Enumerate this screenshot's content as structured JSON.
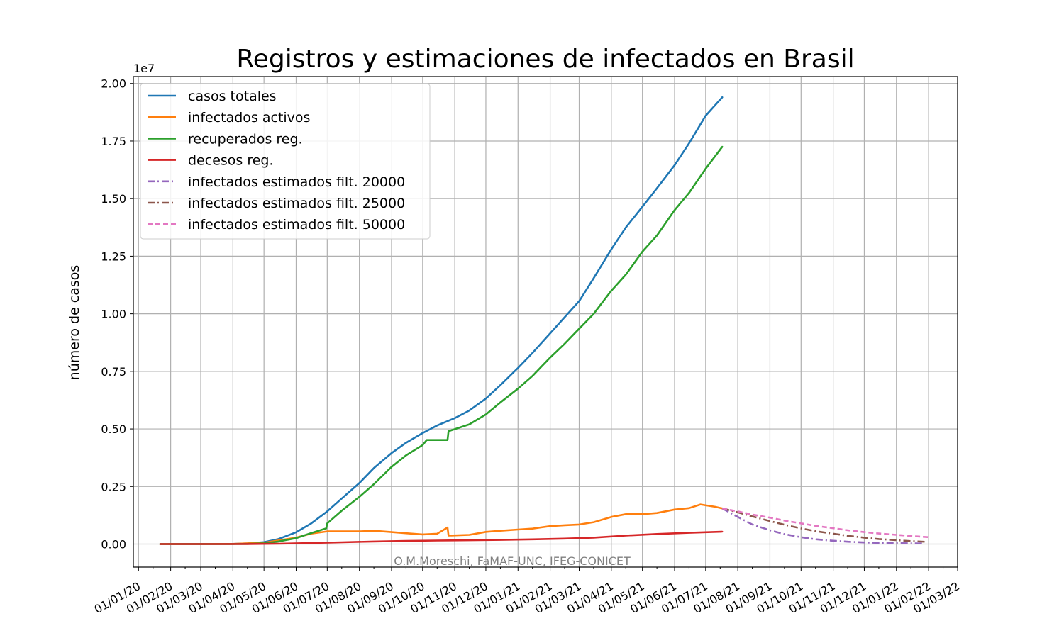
{
  "chart_data": {
    "type": "line",
    "title": "Registros y estimaciones de infectados en Brasil",
    "ylabel": "número de casos",
    "xlabel": "",
    "y_offset_label": "1e7",
    "y_scale": 10000000,
    "xlim": [
      "2019-12-27",
      "2022-03-01"
    ],
    "ylim": [
      -0.1,
      2.03
    ],
    "grid": true,
    "legend_position": "upper-left",
    "yticks": [
      0.0,
      0.25,
      0.5,
      0.75,
      1.0,
      1.25,
      1.5,
      1.75,
      2.0
    ],
    "ytick_labels": [
      "0.00",
      "0.25",
      "0.50",
      "0.75",
      "1.00",
      "1.25",
      "1.50",
      "1.75",
      "2.00"
    ],
    "xticks": [
      "2020-01-01",
      "2020-02-01",
      "2020-03-01",
      "2020-04-01",
      "2020-05-01",
      "2020-06-01",
      "2020-07-01",
      "2020-08-01",
      "2020-09-01",
      "2020-10-01",
      "2020-11-01",
      "2020-12-01",
      "2021-01-01",
      "2021-02-01",
      "2021-03-01",
      "2021-04-01",
      "2021-05-01",
      "2021-06-01",
      "2021-07-01",
      "2021-08-01",
      "2021-09-01",
      "2021-10-01",
      "2021-11-01",
      "2021-12-01",
      "2022-01-01",
      "2022-02-01",
      "2022-03-01"
    ],
    "xtick_labels": [
      "01/01/20",
      "01/02/20",
      "01/03/20",
      "01/04/20",
      "01/05/20",
      "01/06/20",
      "01/07/20",
      "01/08/20",
      "01/09/20",
      "01/10/20",
      "01/11/20",
      "01/12/20",
      "01/01/21",
      "01/02/21",
      "01/03/21",
      "01/04/21",
      "01/05/21",
      "01/06/21",
      "01/07/21",
      "01/08/21",
      "01/09/21",
      "01/10/21",
      "01/11/21",
      "01/12/21",
      "01/01/22",
      "01/02/22",
      "01/03/22"
    ],
    "series": [
      {
        "name": "casos totales",
        "color": "#1f77b4",
        "dash": "solid",
        "x": [
          "2020-01-22",
          "2020-03-01",
          "2020-04-01",
          "2020-04-15",
          "2020-05-01",
          "2020-05-15",
          "2020-06-01",
          "2020-06-15",
          "2020-07-01",
          "2020-07-15",
          "2020-08-01",
          "2020-08-15",
          "2020-09-01",
          "2020-09-15",
          "2020-10-01",
          "2020-10-15",
          "2020-11-01",
          "2020-11-15",
          "2020-12-01",
          "2020-12-15",
          "2021-01-01",
          "2021-01-15",
          "2021-02-01",
          "2021-02-15",
          "2021-03-01",
          "2021-03-15",
          "2021-04-01",
          "2021-04-15",
          "2021-05-01",
          "2021-05-15",
          "2021-06-01",
          "2021-06-15",
          "2021-07-01",
          "2021-07-17"
        ],
        "values": [
          0.0,
          0.0002,
          0.00065,
          0.0027,
          0.0085,
          0.0218,
          0.0515,
          0.088,
          0.142,
          0.198,
          0.265,
          0.33,
          0.395,
          0.44,
          0.482,
          0.515,
          0.547,
          0.58,
          0.632,
          0.69,
          0.765,
          0.83,
          0.915,
          0.985,
          1.055,
          1.155,
          1.28,
          1.375,
          1.465,
          1.545,
          1.645,
          1.74,
          1.86,
          1.94
        ]
      },
      {
        "name": "infectados activos",
        "color": "#ff7f0e",
        "dash": "solid",
        "x": [
          "2020-01-22",
          "2020-03-01",
          "2020-04-01",
          "2020-05-01",
          "2020-06-01",
          "2020-06-15",
          "2020-07-01",
          "2020-07-15",
          "2020-08-01",
          "2020-08-15",
          "2020-09-01",
          "2020-09-15",
          "2020-10-01",
          "2020-10-15",
          "2020-10-25",
          "2020-10-26",
          "2020-11-15",
          "2020-12-01",
          "2020-12-15",
          "2021-01-01",
          "2021-01-15",
          "2021-02-01",
          "2021-02-15",
          "2021-03-01",
          "2021-03-15",
          "2021-04-01",
          "2021-04-15",
          "2021-05-01",
          "2021-05-15",
          "2021-06-01",
          "2021-06-15",
          "2021-06-26",
          "2021-07-10",
          "2021-07-17"
        ],
        "values": [
          0.0,
          0.0001,
          0.0005,
          0.006,
          0.028,
          0.045,
          0.055,
          0.055,
          0.055,
          0.058,
          0.052,
          0.047,
          0.042,
          0.045,
          0.072,
          0.037,
          0.04,
          0.053,
          0.058,
          0.063,
          0.067,
          0.078,
          0.082,
          0.085,
          0.095,
          0.118,
          0.13,
          0.13,
          0.135,
          0.15,
          0.156,
          0.172,
          0.162,
          0.155
        ]
      },
      {
        "name": "recuperados reg.",
        "color": "#2ca02c",
        "dash": "solid",
        "x": [
          "2020-01-22",
          "2020-03-01",
          "2020-04-01",
          "2020-04-15",
          "2020-05-01",
          "2020-05-15",
          "2020-06-01",
          "2020-06-15",
          "2020-06-30",
          "2020-07-01",
          "2020-07-15",
          "2020-08-01",
          "2020-08-15",
          "2020-09-01",
          "2020-09-15",
          "2020-10-01",
          "2020-10-05",
          "2020-10-25",
          "2020-10-26",
          "2020-11-15",
          "2020-12-01",
          "2020-12-15",
          "2021-01-01",
          "2021-01-15",
          "2021-02-01",
          "2021-02-15",
          "2021-03-01",
          "2021-03-15",
          "2021-04-01",
          "2021-04-15",
          "2021-05-01",
          "2021-05-15",
          "2021-06-01",
          "2021-06-15",
          "2021-07-01",
          "2021-07-17"
        ],
        "values": [
          0.0,
          0.0,
          0.0001,
          0.0008,
          0.0035,
          0.011,
          0.026,
          0.047,
          0.068,
          0.09,
          0.145,
          0.205,
          0.26,
          0.335,
          0.385,
          0.43,
          0.452,
          0.452,
          0.49,
          0.52,
          0.563,
          0.615,
          0.675,
          0.73,
          0.81,
          0.87,
          0.935,
          1.0,
          1.1,
          1.17,
          1.27,
          1.34,
          1.45,
          1.525,
          1.63,
          1.725
        ]
      },
      {
        "name": "decesos reg.",
        "color": "#d62728",
        "dash": "solid",
        "x": [
          "2020-01-22",
          "2020-03-15",
          "2020-04-15",
          "2020-05-15",
          "2020-06-15",
          "2020-07-15",
          "2020-08-15",
          "2020-09-15",
          "2020-10-15",
          "2020-11-15",
          "2020-12-15",
          "2021-01-15",
          "2021-02-15",
          "2021-03-15",
          "2021-04-15",
          "2021-05-15",
          "2021-06-15",
          "2021-07-17"
        ],
        "values": [
          0.0,
          0.0,
          0.0002,
          0.0015,
          0.0044,
          0.0077,
          0.011,
          0.0135,
          0.0154,
          0.0168,
          0.0182,
          0.0207,
          0.0238,
          0.028,
          0.037,
          0.0436,
          0.049,
          0.054
        ]
      },
      {
        "name": "infectados estimados filt. 20000",
        "color": "#9467bd",
        "dash": "dashdot",
        "x": [
          "2021-07-17",
          "2021-08-01",
          "2021-08-15",
          "2021-09-01",
          "2021-09-15",
          "2021-10-01",
          "2021-10-15",
          "2021-11-01",
          "2021-11-15",
          "2021-12-01",
          "2021-12-15",
          "2022-01-01",
          "2022-01-15",
          "2022-01-27"
        ],
        "values": [
          0.155,
          0.118,
          0.085,
          0.06,
          0.043,
          0.03,
          0.021,
          0.0145,
          0.0101,
          0.0072,
          0.0053,
          0.004,
          0.0031,
          0.0025
        ]
      },
      {
        "name": "infectados estimados filt. 25000",
        "color": "#8c564b",
        "dash": "dashdot",
        "x": [
          "2021-07-17",
          "2021-08-01",
          "2021-08-15",
          "2021-09-01",
          "2021-09-15",
          "2021-10-01",
          "2021-10-15",
          "2021-11-01",
          "2021-11-15",
          "2021-12-01",
          "2021-12-15",
          "2022-01-01",
          "2022-01-15",
          "2022-01-29"
        ],
        "values": [
          0.155,
          0.138,
          0.12,
          0.1,
          0.084,
          0.068,
          0.056,
          0.045,
          0.036,
          0.028,
          0.022,
          0.017,
          0.013,
          0.01
        ]
      },
      {
        "name": "infectados estimados filt. 50000",
        "color": "#e377c2",
        "dash": "dashed",
        "x": [
          "2021-07-17",
          "2021-08-01",
          "2021-08-15",
          "2021-09-01",
          "2021-09-15",
          "2021-10-01",
          "2021-10-15",
          "2021-11-01",
          "2021-11-15",
          "2021-12-01",
          "2021-12-15",
          "2022-01-01",
          "2022-01-15",
          "2022-02-01"
        ],
        "values": [
          0.155,
          0.142,
          0.128,
          0.115,
          0.102,
          0.09,
          0.079,
          0.069,
          0.06,
          0.052,
          0.046,
          0.04,
          0.035,
          0.03
        ]
      }
    ],
    "annotation": "O.M.Moreschi, FaMAF-UNC, IFEG-CONICET"
  }
}
